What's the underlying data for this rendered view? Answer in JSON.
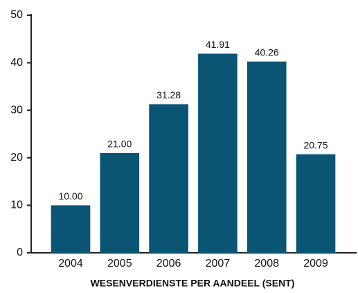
{
  "chart_data": {
    "type": "bar",
    "x_label": "WESENVERDIENSTE PER AANDEEL (SENT)",
    "categories": [
      "2004",
      "2005",
      "2006",
      "2007",
      "2008",
      "2009"
    ],
    "values": [
      10.0,
      21.0,
      31.28,
      41.91,
      40.26,
      20.75
    ],
    "value_labels": [
      "10.00",
      "21.00",
      "31.28",
      "41.91",
      "40.26",
      "20.75"
    ],
    "color": "#0a5474",
    "ylim": [
      0,
      50
    ],
    "yticks": [
      0,
      10,
      20,
      30,
      40,
      50
    ],
    "grid": false
  }
}
